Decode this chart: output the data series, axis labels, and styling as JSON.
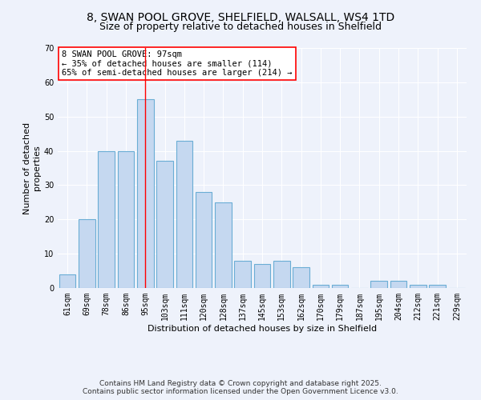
{
  "title": "8, SWAN POOL GROVE, SHELFIELD, WALSALL, WS4 1TD",
  "subtitle": "Size of property relative to detached houses in Shelfield",
  "xlabel": "Distribution of detached houses by size in Shelfield",
  "ylabel": "Number of detached\nproperties",
  "categories": [
    "61sqm",
    "69sqm",
    "78sqm",
    "86sqm",
    "95sqm",
    "103sqm",
    "111sqm",
    "120sqm",
    "128sqm",
    "137sqm",
    "145sqm",
    "153sqm",
    "162sqm",
    "170sqm",
    "179sqm",
    "187sqm",
    "195sqm",
    "204sqm",
    "212sqm",
    "221sqm",
    "229sqm"
  ],
  "values": [
    4,
    20,
    40,
    40,
    55,
    37,
    43,
    28,
    25,
    8,
    7,
    8,
    6,
    1,
    1,
    0,
    2,
    2,
    1,
    1,
    0
  ],
  "bar_color": "#c5d8f0",
  "bar_edge_color": "#6aadd5",
  "red_line_index": 4,
  "annotation_title": "8 SWAN POOL GROVE: 97sqm",
  "annotation_line1": "← 35% of detached houses are smaller (114)",
  "annotation_line2": "65% of semi-detached houses are larger (214) →",
  "ylim": [
    0,
    70
  ],
  "yticks": [
    0,
    10,
    20,
    30,
    40,
    50,
    60,
    70
  ],
  "footer1": "Contains HM Land Registry data © Crown copyright and database right 2025.",
  "footer2": "Contains public sector information licensed under the Open Government Licence v3.0.",
  "background_color": "#eef2fb",
  "plot_bg_color": "#eef2fb",
  "grid_color": "#ffffff",
  "title_fontsize": 10,
  "subtitle_fontsize": 9,
  "annotation_fontsize": 7.5,
  "tick_fontsize": 7,
  "axis_label_fontsize": 8,
  "footer_fontsize": 6.5
}
